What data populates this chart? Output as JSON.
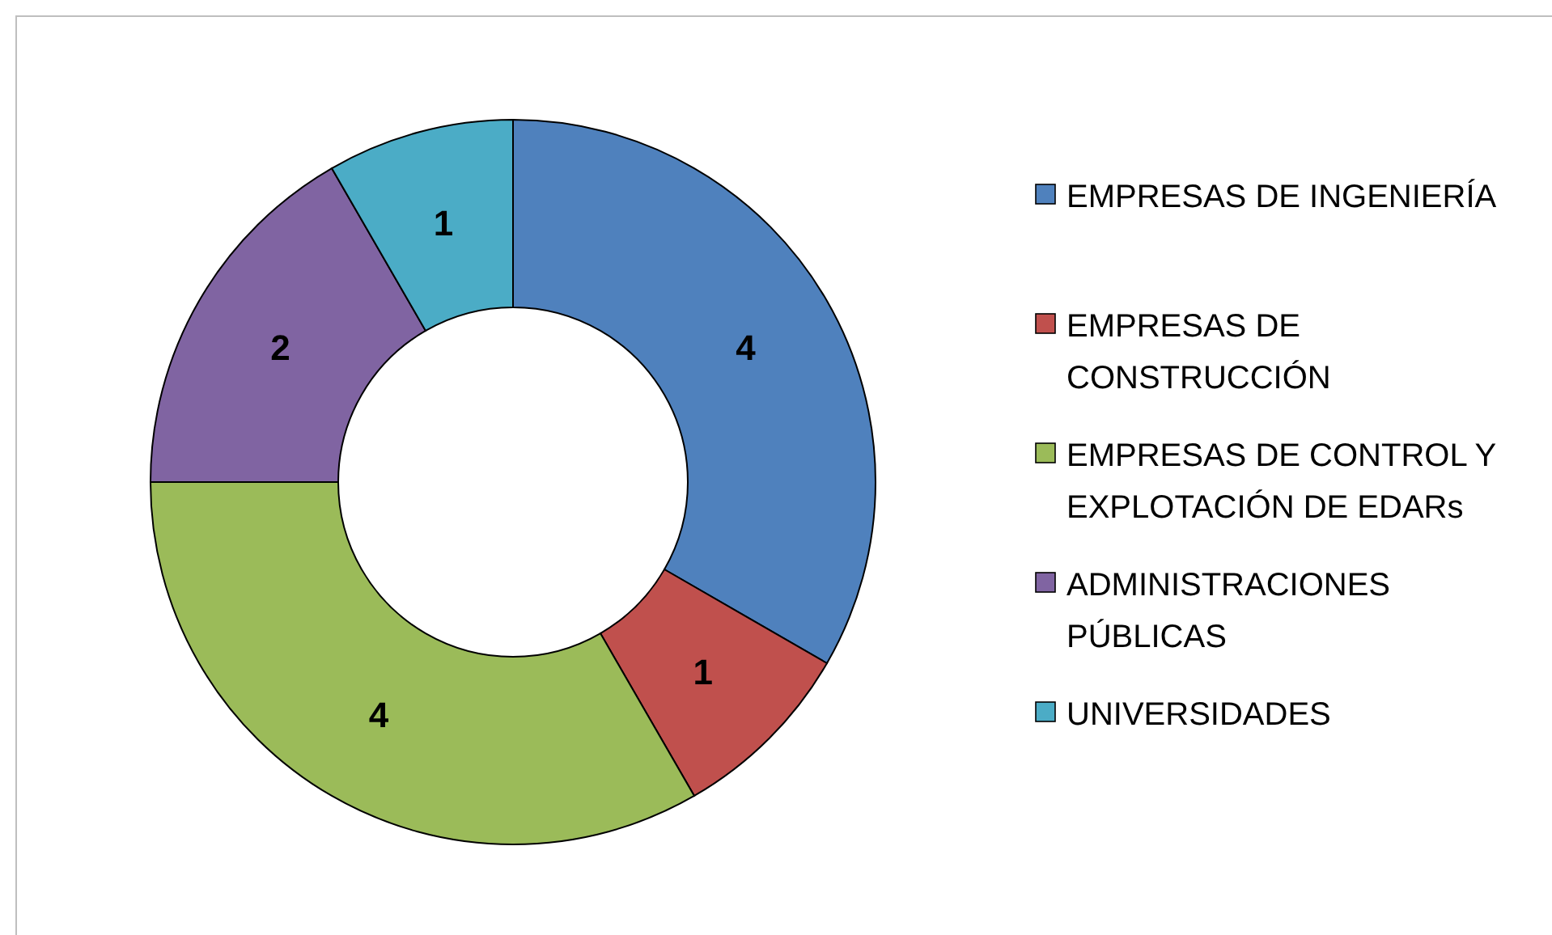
{
  "chart_data": {
    "type": "donut",
    "categories": [
      "EMPRESAS DE INGENIERÍA",
      "EMPRESAS DE CONSTRUCCIÓN",
      "EMPRESAS DE CONTROL Y EXPLOTACIÓN DE EDARs",
      "ADMINISTRACIONES PÚBLICAS",
      "UNIVERSIDADES"
    ],
    "values": [
      4,
      1,
      4,
      2,
      1
    ],
    "colors": [
      "#4f81bd",
      "#c0504d",
      "#9bbb59",
      "#8064a2",
      "#4bacc6"
    ],
    "data_labels": true,
    "legend": "right"
  }
}
